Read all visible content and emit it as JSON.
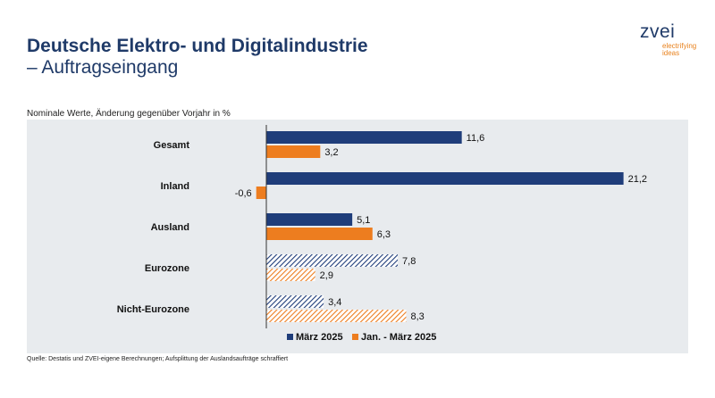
{
  "header": {
    "title_line1": "Deutsche Elektro- und Digitalindustrie",
    "title_line2": "– Auftragseingang"
  },
  "logo": {
    "name": "zvei",
    "tagline_line1": "electrifying",
    "tagline_line2": "ideas"
  },
  "subtitle": "Nominale Werte, Änderung gegenüber Vorjahr in %",
  "source": "Quelle: Destatis und ZVEI-eigene Berechnungen; Aufsplittung der Auslandsaufträge schraffiert",
  "colors": {
    "series1": "#1f3d7a",
    "series2": "#ed7d1f",
    "panel": "#e8ebee",
    "title": "#1f3a68"
  },
  "chart_data": {
    "type": "bar",
    "orientation": "horizontal",
    "categories": [
      "Gesamt",
      "Inland",
      "Ausland",
      "Eurozone",
      "Nicht-Eurozone"
    ],
    "series": [
      {
        "name": "März 2025",
        "values": [
          11.6,
          21.2,
          5.1,
          7.8,
          3.4
        ],
        "labels": [
          "11,6",
          "21,2",
          "5,1",
          "7,8",
          "3,4"
        ]
      },
      {
        "name": "Jan. - März 2025",
        "values": [
          3.2,
          -0.6,
          6.3,
          2.9,
          8.3
        ],
        "labels": [
          "3,2",
          "-0,6",
          "6,3",
          "2,9",
          "8,3"
        ]
      }
    ],
    "hatched_categories": [
      "Eurozone",
      "Nicht-Eurozone"
    ],
    "xlim": [
      -1,
      22
    ],
    "grid": false,
    "legend": "bottom"
  }
}
